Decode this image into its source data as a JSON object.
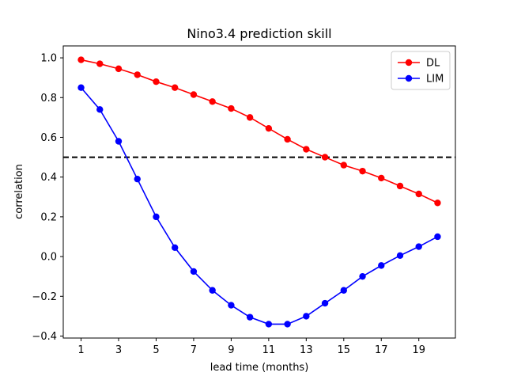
{
  "chart_data": {
    "type": "line",
    "title": "Nino3.4 prediction skill",
    "xlabel": "lead time (months)",
    "ylabel": "correlation",
    "xlim": [
      0.05,
      20.95
    ],
    "ylim": [
      -0.41,
      1.06
    ],
    "xticks": [
      1,
      3,
      5,
      7,
      9,
      11,
      13,
      15,
      17,
      19
    ],
    "yticks": [
      -0.4,
      -0.2,
      0.0,
      0.2,
      0.4,
      0.6,
      0.8,
      1.0
    ],
    "ytick_labels": [
      "−0.4",
      "−0.2",
      "0.0",
      "0.2",
      "0.4",
      "0.6",
      "0.8",
      "1.0"
    ],
    "x": [
      1,
      2,
      3,
      4,
      5,
      6,
      7,
      8,
      9,
      10,
      11,
      12,
      13,
      14,
      15,
      16,
      17,
      18,
      19,
      20
    ],
    "series": [
      {
        "name": "DL",
        "color": "#ff0000",
        "values": [
          0.99,
          0.97,
          0.945,
          0.915,
          0.88,
          0.85,
          0.815,
          0.78,
          0.745,
          0.7,
          0.645,
          0.59,
          0.54,
          0.5,
          0.46,
          0.43,
          0.395,
          0.355,
          0.315,
          0.27
        ]
      },
      {
        "name": "LIM",
        "color": "#0000ff",
        "values": [
          0.85,
          0.74,
          0.58,
          0.39,
          0.2,
          0.045,
          -0.075,
          -0.17,
          -0.245,
          -0.305,
          -0.34,
          -0.34,
          -0.3,
          -0.235,
          -0.17,
          -0.1,
          -0.045,
          0.005,
          0.05,
          0.1
        ]
      }
    ],
    "reference_line": {
      "y": 0.5,
      "style": "dashed",
      "color": "#000000"
    },
    "legend_position": "top-right",
    "grid": false
  }
}
